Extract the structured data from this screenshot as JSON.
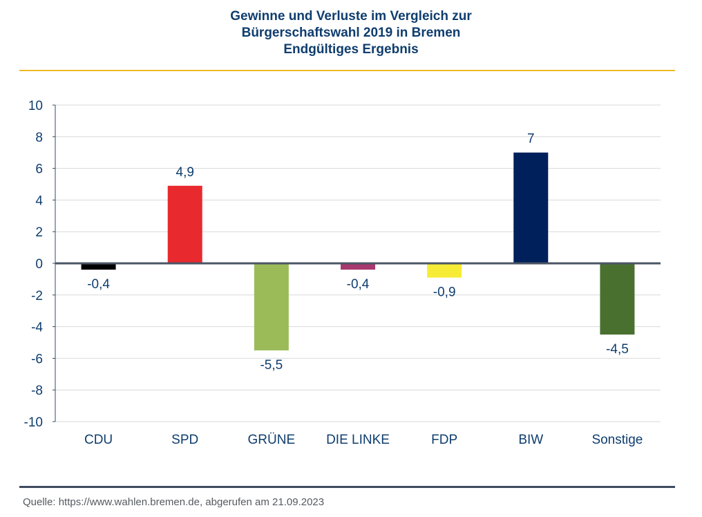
{
  "title_lines": [
    "Gewinne und Verluste im Vergleich zur",
    "Bürgerschaftswahl 2019 in Bremen",
    "Endgültiges Ergebnis"
  ],
  "source": "Quelle: https://www.wahlen.bremen.de, abgerufen am 21.09.2023",
  "chart_data": {
    "type": "bar",
    "title": "Gewinne und Verluste im Vergleich zur Bürgerschaftswahl 2019 in Bremen – Endgültiges Ergebnis",
    "xlabel": "",
    "ylabel": "",
    "categories": [
      "CDU",
      "SPD",
      "GRÜNE",
      "DIE LINKE",
      "FDP",
      "BIW",
      "Sonstige"
    ],
    "values": [
      -0.4,
      4.9,
      -5.5,
      -0.4,
      -0.9,
      7,
      -4.5
    ],
    "value_labels": [
      "-0,4",
      "4,9",
      "-5,5",
      "-0,4",
      "-0,9",
      "7",
      "-4,5"
    ],
    "colors": [
      "#000000",
      "#e8292e",
      "#9bbb59",
      "#a8386e",
      "#f7ec35",
      "#00205b",
      "#4a7030"
    ],
    "ylim": [
      -10,
      10
    ],
    "yticks": [
      10,
      8,
      6,
      4,
      2,
      0,
      -2,
      -4,
      -6,
      -8,
      -10
    ],
    "grid": true,
    "legend": "none",
    "accent_colors": {
      "title": "#0f3d6e",
      "top_rule": "#f0b823",
      "bottom_rule": "#3e4a5e"
    }
  }
}
